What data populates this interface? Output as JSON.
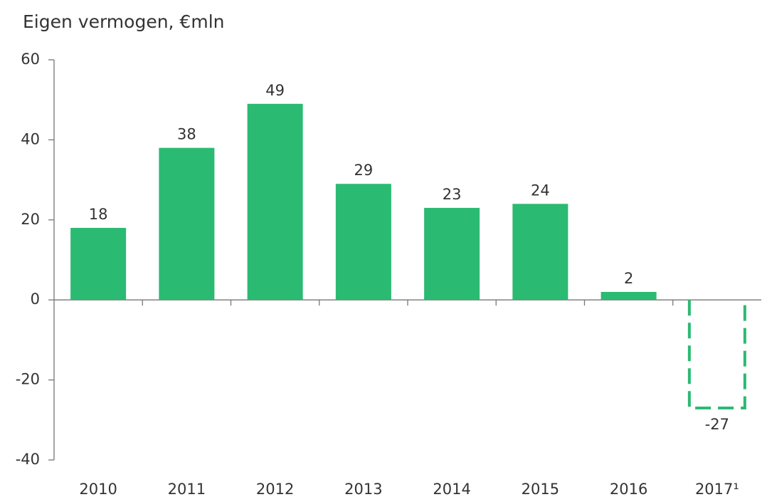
{
  "chart_data": {
    "type": "bar",
    "title": "Eigen vermogen, €mln",
    "categories": [
      "2010",
      "2011",
      "2012",
      "2013",
      "2014",
      "2015",
      "2016",
      "2017¹"
    ],
    "values": [
      18,
      38,
      49,
      29,
      23,
      24,
      2,
      -27
    ],
    "styles": [
      "solid",
      "solid",
      "solid",
      "solid",
      "solid",
      "solid",
      "solid",
      "dashed"
    ],
    "color": "#2bba72",
    "ylim": [
      -40,
      60
    ],
    "yticks": [
      -40,
      -20,
      0,
      20,
      40,
      60
    ],
    "grid": false
  }
}
